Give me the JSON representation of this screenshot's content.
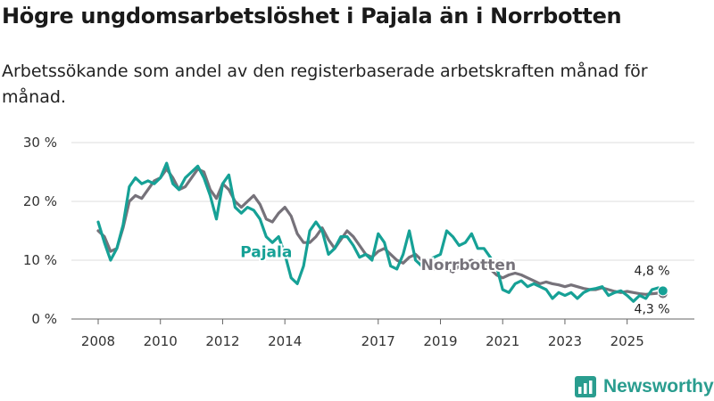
{
  "title": "Högre ungdomsarbetslöshet i Pajala än i Norrbotten",
  "subtitle": "Arbetssökande som andel av den registerbaserade arbetskraften månad för månad.",
  "brand": {
    "name": "Newsworthy",
    "logo_icon": "bar-chart-icon"
  },
  "colors": {
    "pajala": "#16a196",
    "norrbotten": "#76727a",
    "grid": "#dcdcdc"
  },
  "chart_data": {
    "type": "line",
    "title": "Högre ungdomsarbetslöshet i Pajala än i Norrbotten",
    "xlabel": "",
    "ylabel": "",
    "ylim": [
      0,
      30
    ],
    "xlim": [
      2008,
      2026.3
    ],
    "yticks": [
      0,
      10,
      20,
      30
    ],
    "ytick_labels": [
      "0 %",
      "10 %",
      "20 %",
      "30 %"
    ],
    "xticks": [
      2008,
      2010,
      2012,
      2014,
      2017,
      2019,
      2021,
      2023,
      2025
    ],
    "xtick_labels": [
      "2008",
      "2010",
      "2012",
      "2014",
      "2017",
      "2019",
      "2021",
      "2023",
      "2025"
    ],
    "grid": true,
    "series": [
      {
        "name": "Norrbotten",
        "label": "Norrbotten",
        "end_label": "4,3 %",
        "x": [
          2008.0,
          2008.2,
          2008.4,
          2008.6,
          2008.8,
          2009.0,
          2009.2,
          2009.4,
          2009.6,
          2009.8,
          2010.0,
          2010.2,
          2010.4,
          2010.6,
          2010.8,
          2011.0,
          2011.2,
          2011.4,
          2011.6,
          2011.8,
          2012.0,
          2012.2,
          2012.4,
          2012.6,
          2012.8,
          2013.0,
          2013.2,
          2013.4,
          2013.6,
          2013.8,
          2014.0,
          2014.2,
          2014.4,
          2014.6,
          2014.8,
          2015.0,
          2015.2,
          2015.4,
          2015.6,
          2015.8,
          2016.0,
          2016.2,
          2016.4,
          2016.6,
          2016.8,
          2017.0,
          2017.2,
          2017.4,
          2017.6,
          2017.8,
          2018.0,
          2018.2,
          2018.4,
          2018.6,
          2018.8,
          2019.0,
          2019.2,
          2019.4,
          2019.6,
          2019.8,
          2020.0,
          2020.2,
          2020.4,
          2020.6,
          2020.8,
          2021.0,
          2021.2,
          2021.4,
          2021.6,
          2021.8,
          2022.0,
          2022.2,
          2022.4,
          2022.6,
          2022.8,
          2023.0,
          2023.2,
          2023.4,
          2023.6,
          2023.8,
          2024.0,
          2024.2,
          2024.4,
          2024.6,
          2024.8,
          2025.0,
          2025.2,
          2025.4,
          2025.6,
          2025.8,
          2026.0,
          2026.15
        ],
        "values": [
          15,
          14,
          11.5,
          12,
          15.5,
          20,
          21,
          20.5,
          22,
          23.5,
          24,
          25.5,
          24,
          22,
          22.5,
          24,
          25.5,
          25,
          22,
          20.5,
          23,
          22,
          20,
          19,
          20,
          21,
          19.5,
          17,
          16.5,
          18,
          19,
          17.5,
          14.5,
          13,
          13,
          14,
          15.5,
          13.5,
          12,
          13.5,
          15,
          14,
          12.5,
          11,
          10.5,
          11.5,
          12,
          11,
          10,
          9.5,
          10.5,
          11,
          10,
          9,
          8.5,
          9,
          8.5,
          8,
          9,
          9.5,
          10,
          9.5,
          9,
          8.5,
          7.5,
          7,
          7.5,
          7.8,
          7.5,
          7,
          6.5,
          6,
          6.3,
          6,
          5.8,
          5.5,
          5.8,
          5.5,
          5.2,
          5,
          5,
          5.3,
          5,
          4.7,
          4.5,
          4.7,
          4.5,
          4.3,
          4.2,
          4.3,
          4.4,
          4.3
        ]
      },
      {
        "name": "Pajala",
        "label": "Pajala",
        "end_label": "4,8 %",
        "x": [
          2008.0,
          2008.2,
          2008.4,
          2008.6,
          2008.8,
          2009.0,
          2009.2,
          2009.4,
          2009.6,
          2009.8,
          2010.0,
          2010.2,
          2010.4,
          2010.6,
          2010.8,
          2011.0,
          2011.2,
          2011.4,
          2011.6,
          2011.8,
          2012.0,
          2012.2,
          2012.4,
          2012.6,
          2012.8,
          2013.0,
          2013.2,
          2013.4,
          2013.6,
          2013.8,
          2014.0,
          2014.2,
          2014.4,
          2014.6,
          2014.8,
          2015.0,
          2015.2,
          2015.4,
          2015.6,
          2015.8,
          2016.0,
          2016.2,
          2016.4,
          2016.6,
          2016.8,
          2017.0,
          2017.2,
          2017.4,
          2017.6,
          2017.8,
          2018.0,
          2018.2,
          2018.4,
          2018.6,
          2018.8,
          2019.0,
          2019.2,
          2019.4,
          2019.6,
          2019.8,
          2020.0,
          2020.2,
          2020.4,
          2020.6,
          2020.8,
          2021.0,
          2021.2,
          2021.4,
          2021.6,
          2021.8,
          2022.0,
          2022.2,
          2022.4,
          2022.6,
          2022.8,
          2023.0,
          2023.2,
          2023.4,
          2023.6,
          2023.8,
          2024.0,
          2024.2,
          2024.4,
          2024.6,
          2024.8,
          2025.0,
          2025.2,
          2025.4,
          2025.6,
          2025.8,
          2026.0,
          2026.15
        ],
        "values": [
          16.5,
          13,
          10,
          12,
          16,
          22.5,
          24,
          23,
          23.5,
          23,
          24,
          26.5,
          23,
          22,
          24,
          25,
          26,
          24,
          21,
          17,
          23,
          24.5,
          19,
          18,
          19,
          18.5,
          17,
          14,
          13,
          14,
          11,
          7,
          6,
          9,
          15,
          16.5,
          15,
          11,
          12,
          14,
          14,
          12.5,
          10.5,
          11,
          10,
          14.5,
          13,
          9,
          8.5,
          11,
          15,
          10,
          9,
          10,
          10.5,
          11,
          15,
          14,
          12.5,
          13,
          14.5,
          12,
          12,
          10.5,
          9,
          5,
          4.5,
          6,
          6.5,
          5.5,
          6,
          5.5,
          5,
          3.5,
          4.5,
          4,
          4.5,
          3.5,
          4.5,
          5,
          5.2,
          5.5,
          4,
          4.5,
          4.8,
          4,
          3,
          4,
          3.5,
          5,
          5.3,
          4.8
        ]
      }
    ]
  }
}
